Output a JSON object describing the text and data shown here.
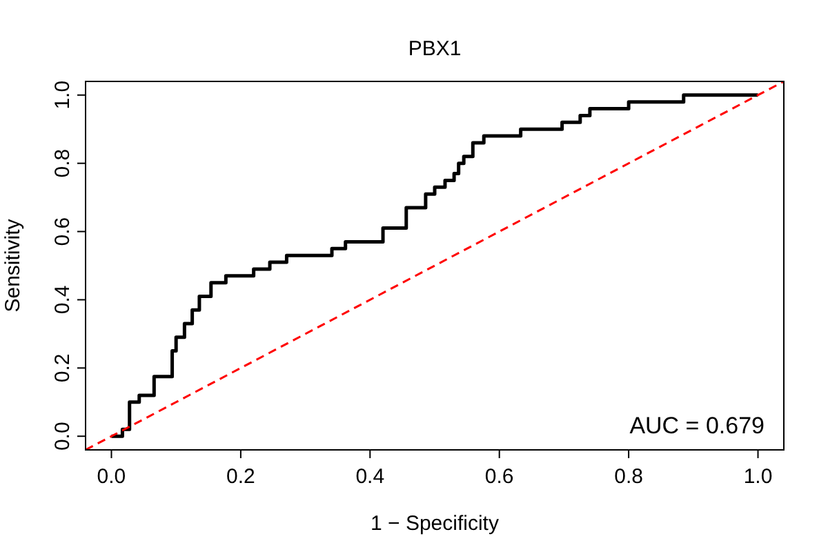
{
  "chart_data": {
    "type": "step",
    "title": "PBX1",
    "xlabel": "1 − Specificity",
    "ylabel": "Sensitivity",
    "xlim": [
      -0.04,
      1.04
    ],
    "ylim": [
      -0.04,
      1.04
    ],
    "xticks": [
      {
        "value": 0,
        "label": "0.0"
      },
      0.2,
      0.4,
      0.6,
      0.8,
      {
        "value": 1,
        "label": "1.0"
      }
    ],
    "yticks": [
      {
        "value": 0,
        "label": "0.0"
      },
      0.2,
      0.4,
      0.6,
      0.8,
      {
        "value": 1,
        "label": "1.0"
      }
    ],
    "grid": false,
    "annotations": [
      "AUC = 0.679"
    ],
    "series": [
      {
        "color": "#000000",
        "line_style": "solid",
        "x": [
          0,
          0.017,
          0.028,
          0.043,
          0.066,
          0.094,
          0.1,
          0.113,
          0.125,
          0.136,
          0.154,
          0.177,
          0.22,
          0.245,
          0.271,
          0.341,
          0.362,
          0.42,
          0.456,
          0.486,
          0.5,
          0.516,
          0.53,
          0.537,
          0.545,
          0.559,
          0.576,
          0.633,
          0.697,
          0.725,
          0.74,
          0.8,
          0.885,
          1
        ],
        "values": [
          0,
          0.02,
          0.1,
          0.12,
          0.175,
          0.25,
          0.29,
          0.33,
          0.37,
          0.41,
          0.45,
          0.47,
          0.49,
          0.51,
          0.53,
          0.55,
          0.57,
          0.61,
          0.67,
          0.71,
          0.73,
          0.75,
          0.77,
          0.8,
          0.82,
          0.86,
          0.88,
          0.9,
          0.92,
          0.94,
          0.96,
          0.98,
          1,
          1
        ]
      },
      {
        "type": "line",
        "color": "#ff0000",
        "line_style": "dashed",
        "x": [
          -0.04,
          1.04
        ],
        "values": [
          -0.04,
          1.04
        ]
      }
    ]
  }
}
